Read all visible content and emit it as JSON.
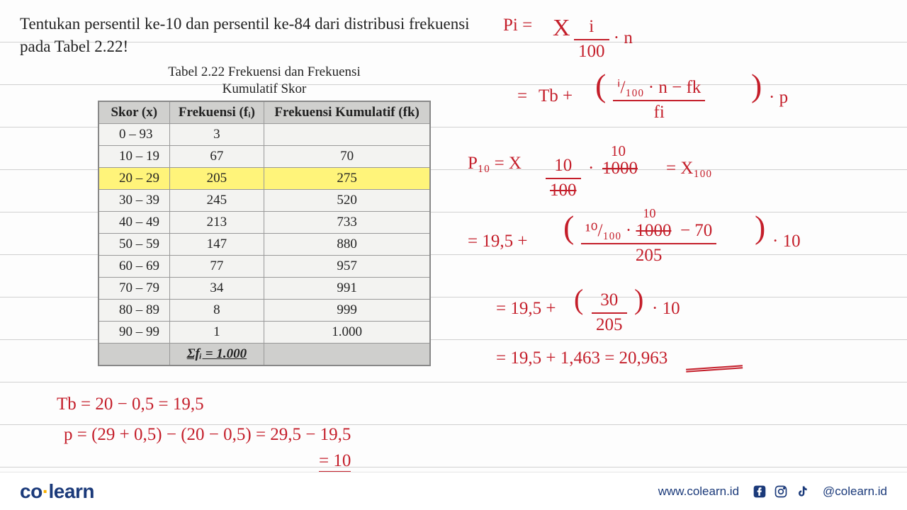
{
  "question": "Tentukan persentil ke-10 dan persentil ke-84 dari distribusi frekuensi pada Tabel 2.22!",
  "table": {
    "caption_l1": "Tabel 2.22 Frekuensi dan Frekuensi",
    "caption_l2": "Kumulatif Skor",
    "head_skor": "Skor (x)",
    "head_fi": "Frekuensi (fᵢ)",
    "head_fk": "Frekuensi Kumulatif (fk)",
    "rows": [
      {
        "skor": "0 –   93",
        "fi": "3",
        "fk": ""
      },
      {
        "skor": "10 – 19",
        "fi": "67",
        "fk": "70"
      },
      {
        "skor": "20 – 29",
        "fi": "205",
        "fk": "275",
        "hl": true
      },
      {
        "skor": "30 – 39",
        "fi": "245",
        "fk": "520"
      },
      {
        "skor": "40 – 49",
        "fi": "213",
        "fk": "733"
      },
      {
        "skor": "50 – 59",
        "fi": "147",
        "fk": "880"
      },
      {
        "skor": "60 – 69",
        "fi": "77",
        "fk": "957"
      },
      {
        "skor": "70 – 79",
        "fi": "34",
        "fk": "991"
      },
      {
        "skor": "80 – 89",
        "fi": "8",
        "fk": "999"
      },
      {
        "skor": "90 – 99",
        "fi": "1",
        "fk": "1.000"
      }
    ],
    "sum_label": "Σfᵢ = 1.000"
  },
  "hand": {
    "pi_def_lhs": "Pi =",
    "pi_x": "X",
    "pi_i": "i",
    "pi_100": "100",
    "pi_dot_n": "· n",
    "eq": "=",
    "tb": "Tb +",
    "f_num": "ⁱ/₁₀₀ · n  − fk",
    "f_den": "fi",
    "dot_p": "· p",
    "p10_lhs": "P₁₀ = X",
    "p10_10": "10",
    "p10_100s": "100",
    "p10_dot": "·",
    "p10_1000s": "1000",
    "p10_10top": "10",
    "p10_rhs": "=  X₁₀₀",
    "l2_lhs": "= 19,5 +",
    "l2_num_a": "¹⁰/₁₀₀ ·",
    "l2_1000s": "1000",
    "l2_10top": "10",
    "l2_minus70": "− 70",
    "l2_den": "205",
    "l2_tail": "· 10",
    "l3": "= 19,5 + ",
    "l3_num": "30",
    "l3_den": "205",
    "l3_tail": "· 10",
    "l4": "= 19,5 + 1,463  = 20,963",
    "tbcalc": "Tb = 20 − 0,5 = 19,5",
    "pcalc": "p = (29 + 0,5) − (20 − 0,5) = 29,5 − 19,5",
    "p_ten": "= 10"
  },
  "footer": {
    "brand_co": "co",
    "brand_learn": "learn",
    "url": "www.colearn.id",
    "handle": "@colearn.id"
  },
  "colors": {
    "hand": "#c41e2a",
    "highlight": "#fff47a",
    "brand": "#1b3a7a",
    "brand_accent": "#f9b000"
  }
}
